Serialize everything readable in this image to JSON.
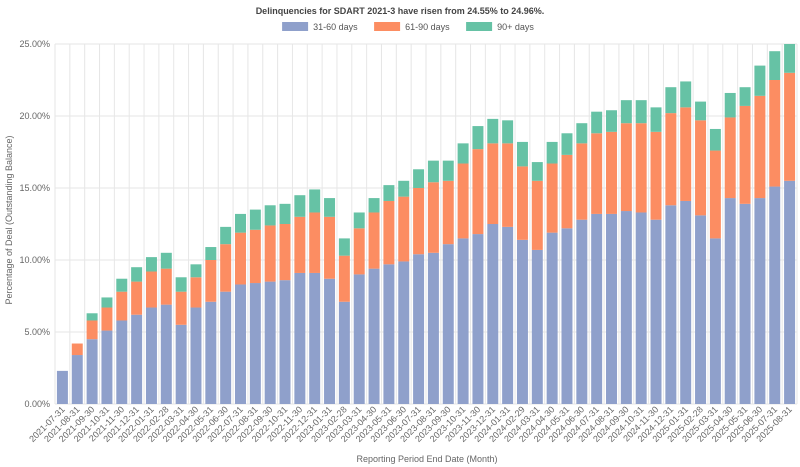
{
  "chart_data": {
    "type": "bar",
    "stacked": true,
    "title": "Delinquencies for SDART 2021-3 have risen from 24.55% to 24.96%.",
    "xlabel": "Reporting Period End Date (Month)",
    "ylabel": "Percentage of Deal (Outstanding Balance)",
    "ylim": [
      0,
      25
    ],
    "yticks": [
      "0.00%",
      "5.00%",
      "10.00%",
      "15.00%",
      "20.00%",
      "25.00%"
    ],
    "ytick_values": [
      0,
      5,
      10,
      15,
      20,
      25
    ],
    "legend_position": "top-center",
    "grid": true,
    "categories": [
      "2021-07-31",
      "2021-08-31",
      "2021-09-30",
      "2021-10-31",
      "2021-11-30",
      "2021-12-31",
      "2022-01-31",
      "2022-02-28",
      "2022-03-31",
      "2022-04-30",
      "2022-05-31",
      "2022-06-30",
      "2022-07-31",
      "2022-08-31",
      "2022-09-30",
      "2022-10-31",
      "2022-11-30",
      "2022-12-31",
      "2023-01-31",
      "2023-02-28",
      "2023-03-31",
      "2023-04-30",
      "2023-05-31",
      "2023-06-30",
      "2023-07-31",
      "2023-08-31",
      "2023-09-30",
      "2023-10-31",
      "2023-11-30",
      "2023-12-31",
      "2024-01-31",
      "2024-02-29",
      "2024-03-31",
      "2024-04-30",
      "2024-05-31",
      "2024-06-30",
      "2024-07-31",
      "2024-08-31",
      "2024-09-30",
      "2024-10-31",
      "2024-11-30",
      "2024-12-31",
      "2025-01-31",
      "2025-02-28",
      "2025-03-31",
      "2025-04-30",
      "2025-05-31",
      "2025-06-30",
      "2025-07-31",
      "2025-08-31"
    ],
    "series": [
      {
        "name": "31-60 days",
        "color": "#8fa0cb",
        "values": [
          2.3,
          3.4,
          4.5,
          5.1,
          5.8,
          6.2,
          6.7,
          6.9,
          5.5,
          6.7,
          7.1,
          7.8,
          8.3,
          8.4,
          8.5,
          8.6,
          9.1,
          9.1,
          8.7,
          7.1,
          9.0,
          9.4,
          9.7,
          9.9,
          10.4,
          10.5,
          11.1,
          11.5,
          11.8,
          12.5,
          12.3,
          11.4,
          10.7,
          11.9,
          12.2,
          12.8,
          13.2,
          13.2,
          13.4,
          13.3,
          12.8,
          13.8,
          14.1,
          13.1,
          11.5,
          14.3,
          13.9,
          14.3,
          15.1,
          15.5
        ]
      },
      {
        "name": "61-90 days",
        "color": "#fc8d62",
        "values": [
          0,
          0.8,
          1.3,
          1.6,
          2.0,
          2.3,
          2.5,
          2.5,
          2.3,
          2.1,
          2.9,
          3.3,
          3.6,
          3.7,
          3.9,
          3.9,
          3.9,
          4.2,
          4.3,
          3.2,
          3.2,
          3.9,
          4.4,
          4.5,
          4.6,
          4.9,
          4.4,
          5.2,
          5.9,
          5.6,
          5.8,
          5.1,
          4.8,
          4.8,
          5.1,
          5.3,
          5.6,
          5.7,
          6.1,
          6.2,
          6.1,
          6.4,
          6.5,
          6.6,
          6.1,
          5.6,
          6.8,
          7.1,
          7.4,
          7.5
        ]
      },
      {
        "name": "90+ days",
        "color": "#66c2a5",
        "values": [
          0,
          0,
          0.5,
          0.7,
          0.9,
          1.0,
          1.0,
          1.1,
          1.0,
          0.9,
          0.9,
          1.2,
          1.3,
          1.4,
          1.4,
          1.4,
          1.5,
          1.6,
          1.3,
          1.2,
          1.1,
          1.0,
          1.1,
          1.1,
          1.3,
          1.5,
          1.4,
          1.4,
          1.6,
          1.7,
          1.6,
          1.7,
          1.3,
          1.5,
          1.5,
          1.4,
          1.5,
          1.5,
          1.6,
          1.6,
          1.7,
          1.8,
          1.8,
          1.3,
          1.5,
          1.7,
          1.3,
          2.1,
          2.0,
          2.0
        ]
      }
    ]
  }
}
